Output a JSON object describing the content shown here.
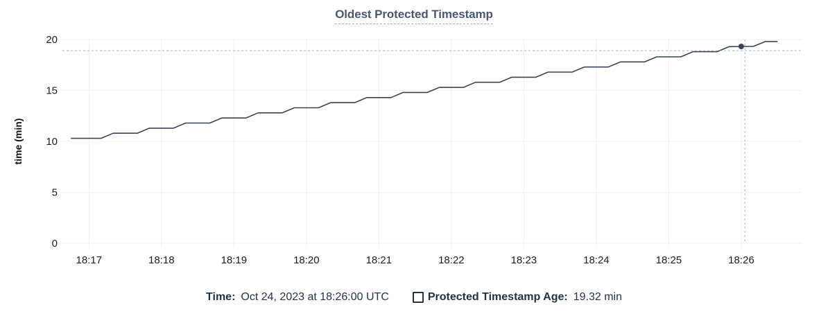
{
  "title": "Oldest Protected Timestamp",
  "legend": {
    "time_label": "Time:",
    "time_value": "Oct 24, 2023 at 18:26:00 UTC",
    "series_label": "Protected Timestamp Age:",
    "series_value": "19.32 min",
    "marker": "square-outline"
  },
  "colors": {
    "title": "#475872",
    "title_underline": "#9cadc8",
    "line": "#394455",
    "grid": "#f0f0f0",
    "axis_text": "#1c1c1c",
    "crosshair": "#9eb3c2",
    "legend_text": "#1e3248"
  },
  "chart_data": {
    "type": "line",
    "title": "Oldest Protected Timestamp",
    "xlabel": "",
    "ylabel": "time (min)",
    "ylim": [
      0,
      20
    ],
    "y_ticks": [
      0,
      5,
      10,
      15,
      20
    ],
    "x_ticks": [
      "18:17",
      "18:18",
      "18:19",
      "18:20",
      "18:21",
      "18:22",
      "18:23",
      "18:24",
      "18:25",
      "18:26"
    ],
    "x_domain": [
      "18:16:38",
      "18:26:50"
    ],
    "grid": true,
    "legend_position": "bottom",
    "series": [
      {
        "name": "Protected Timestamp Age",
        "unit": "min",
        "points": [
          [
            "18:16:45",
            10.3
          ],
          [
            "18:17:00",
            10.3
          ],
          [
            "18:17:10",
            10.3
          ],
          [
            "18:17:20",
            10.8
          ],
          [
            "18:17:30",
            10.8
          ],
          [
            "18:17:40",
            10.8
          ],
          [
            "18:17:50",
            11.3
          ],
          [
            "18:18:00",
            11.3
          ],
          [
            "18:18:10",
            11.3
          ],
          [
            "18:18:20",
            11.8
          ],
          [
            "18:18:30",
            11.8
          ],
          [
            "18:18:40",
            11.8
          ],
          [
            "18:18:50",
            12.3
          ],
          [
            "18:19:00",
            12.3
          ],
          [
            "18:19:10",
            12.3
          ],
          [
            "18:19:20",
            12.8
          ],
          [
            "18:19:30",
            12.8
          ],
          [
            "18:19:40",
            12.8
          ],
          [
            "18:19:50",
            13.3
          ],
          [
            "18:20:00",
            13.3
          ],
          [
            "18:20:10",
            13.3
          ],
          [
            "18:20:20",
            13.8
          ],
          [
            "18:20:30",
            13.8
          ],
          [
            "18:20:40",
            13.8
          ],
          [
            "18:20:50",
            14.3
          ],
          [
            "18:21:00",
            14.3
          ],
          [
            "18:21:10",
            14.3
          ],
          [
            "18:21:20",
            14.8
          ],
          [
            "18:21:30",
            14.8
          ],
          [
            "18:21:40",
            14.8
          ],
          [
            "18:21:50",
            15.3
          ],
          [
            "18:22:00",
            15.3
          ],
          [
            "18:22:10",
            15.3
          ],
          [
            "18:22:20",
            15.8
          ],
          [
            "18:22:30",
            15.8
          ],
          [
            "18:22:40",
            15.8
          ],
          [
            "18:22:50",
            16.3
          ],
          [
            "18:23:00",
            16.3
          ],
          [
            "18:23:10",
            16.3
          ],
          [
            "18:23:20",
            16.8
          ],
          [
            "18:23:30",
            16.8
          ],
          [
            "18:23:40",
            16.8
          ],
          [
            "18:23:50",
            17.3
          ],
          [
            "18:24:00",
            17.3
          ],
          [
            "18:24:10",
            17.3
          ],
          [
            "18:24:20",
            17.8
          ],
          [
            "18:24:30",
            17.8
          ],
          [
            "18:24:40",
            17.8
          ],
          [
            "18:24:50",
            18.3
          ],
          [
            "18:25:00",
            18.3
          ],
          [
            "18:25:10",
            18.3
          ],
          [
            "18:25:20",
            18.8
          ],
          [
            "18:25:30",
            18.8
          ],
          [
            "18:25:40",
            18.8
          ],
          [
            "18:25:50",
            19.3
          ],
          [
            "18:26:00",
            19.32
          ],
          [
            "18:26:10",
            19.32
          ],
          [
            "18:26:20",
            19.8
          ],
          [
            "18:26:30",
            19.8
          ]
        ]
      }
    ],
    "hover": {
      "time": "18:26:00",
      "value": 19.32,
      "cursor_time": "18:26:03",
      "cursor_value": 18.9
    }
  }
}
